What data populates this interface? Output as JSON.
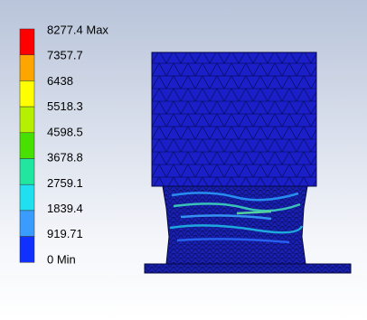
{
  "legend": {
    "labels": [
      "8277.4 Max",
      "7357.7",
      "6438",
      "5518.3",
      "4598.5",
      "3678.8",
      "2759.1",
      "1839.4",
      "919.71",
      "0 Min"
    ]
  }
}
